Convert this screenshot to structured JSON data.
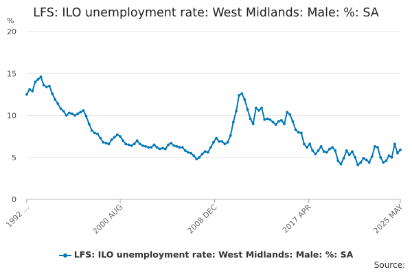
{
  "chart_data": {
    "type": "line",
    "title": "LFS: ILO unemployment rate: West Midlands: Male: %: SA",
    "ylabel": "%",
    "xlabel": "",
    "ylim": [
      0,
      20
    ],
    "yticks": [
      0,
      5,
      10,
      15,
      20
    ],
    "xlim": [
      "1992-05",
      "2025-05"
    ],
    "xtick_labels": [
      {
        "date": "1992-05",
        "label": "1992 ..."
      },
      {
        "date": "2000-08",
        "label": "2000 AUG"
      },
      {
        "date": "2008-12",
        "label": "2008 DEC"
      },
      {
        "date": "2017-04",
        "label": "2017 APR"
      },
      {
        "date": "2025-05",
        "label": "2025 MAY"
      }
    ],
    "grid": true,
    "legend_position": "bottom",
    "series": [
      {
        "name": "LFS: ILO unemployment rate: West Midlands: Male: %: SA",
        "color": "#0077b6",
        "points": [
          [
            "1992-05",
            12.5
          ],
          [
            "1992-08",
            13.1
          ],
          [
            "1992-11",
            12.9
          ],
          [
            "1993-02",
            14.0
          ],
          [
            "1993-05",
            14.3
          ],
          [
            "1993-08",
            14.6
          ],
          [
            "1993-11",
            13.6
          ],
          [
            "1994-02",
            13.4
          ],
          [
            "1994-05",
            13.5
          ],
          [
            "1994-08",
            12.6
          ],
          [
            "1994-11",
            11.9
          ],
          [
            "1995-02",
            11.4
          ],
          [
            "1995-05",
            10.8
          ],
          [
            "1995-08",
            10.5
          ],
          [
            "1995-11",
            10.0
          ],
          [
            "1996-02",
            10.3
          ],
          [
            "1996-05",
            10.2
          ],
          [
            "1996-08",
            10.0
          ],
          [
            "1996-11",
            10.2
          ],
          [
            "1997-02",
            10.4
          ],
          [
            "1997-05",
            10.6
          ],
          [
            "1997-08",
            9.9
          ],
          [
            "1997-11",
            9.0
          ],
          [
            "1998-02",
            8.2
          ],
          [
            "1998-05",
            7.9
          ],
          [
            "1998-08",
            7.8
          ],
          [
            "1998-11",
            7.3
          ],
          [
            "1999-02",
            6.8
          ],
          [
            "1999-05",
            6.7
          ],
          [
            "1999-08",
            6.6
          ],
          [
            "1999-11",
            7.1
          ],
          [
            "2000-02",
            7.4
          ],
          [
            "2000-05",
            7.7
          ],
          [
            "2000-08",
            7.5
          ],
          [
            "2000-11",
            7.0
          ],
          [
            "2001-02",
            6.6
          ],
          [
            "2001-05",
            6.5
          ],
          [
            "2001-08",
            6.4
          ],
          [
            "2001-11",
            6.6
          ],
          [
            "2002-02",
            7.0
          ],
          [
            "2002-05",
            6.6
          ],
          [
            "2002-08",
            6.4
          ],
          [
            "2002-11",
            6.3
          ],
          [
            "2003-02",
            6.2
          ],
          [
            "2003-05",
            6.2
          ],
          [
            "2003-08",
            6.5
          ],
          [
            "2003-11",
            6.2
          ],
          [
            "2004-02",
            6.0
          ],
          [
            "2004-05",
            6.1
          ],
          [
            "2004-08",
            6.0
          ],
          [
            "2004-11",
            6.5
          ],
          [
            "2005-02",
            6.7
          ],
          [
            "2005-05",
            6.4
          ],
          [
            "2005-08",
            6.3
          ],
          [
            "2005-11",
            6.2
          ],
          [
            "2006-02",
            6.2
          ],
          [
            "2006-05",
            5.8
          ],
          [
            "2006-08",
            5.6
          ],
          [
            "2006-11",
            5.5
          ],
          [
            "2007-02",
            5.2
          ],
          [
            "2007-05",
            4.8
          ],
          [
            "2007-08",
            5.0
          ],
          [
            "2007-11",
            5.4
          ],
          [
            "2008-02",
            5.7
          ],
          [
            "2008-05",
            5.6
          ],
          [
            "2008-08",
            6.2
          ],
          [
            "2008-11",
            6.8
          ],
          [
            "2009-02",
            7.3
          ],
          [
            "2009-05",
            6.9
          ],
          [
            "2009-08",
            6.9
          ],
          [
            "2009-11",
            6.6
          ],
          [
            "2010-02",
            6.8
          ],
          [
            "2010-05",
            7.6
          ],
          [
            "2010-08",
            9.2
          ],
          [
            "2010-11",
            10.5
          ],
          [
            "2011-02",
            12.4
          ],
          [
            "2011-05",
            12.6
          ],
          [
            "2011-08",
            11.9
          ],
          [
            "2011-11",
            10.7
          ],
          [
            "2012-02",
            9.6
          ],
          [
            "2012-05",
            9.0
          ],
          [
            "2012-08",
            10.9
          ],
          [
            "2012-11",
            10.6
          ],
          [
            "2013-02",
            10.9
          ],
          [
            "2013-05",
            9.5
          ],
          [
            "2013-08",
            9.6
          ],
          [
            "2013-11",
            9.5
          ],
          [
            "2014-02",
            9.2
          ],
          [
            "2014-05",
            8.9
          ],
          [
            "2014-08",
            9.3
          ],
          [
            "2014-11",
            9.4
          ],
          [
            "2015-02",
            9.0
          ],
          [
            "2015-05",
            10.4
          ],
          [
            "2015-08",
            10.1
          ],
          [
            "2015-11",
            9.3
          ],
          [
            "2016-02",
            8.3
          ],
          [
            "2016-05",
            8.0
          ],
          [
            "2016-08",
            7.9
          ],
          [
            "2016-11",
            6.6
          ],
          [
            "2017-02",
            6.2
          ],
          [
            "2017-05",
            6.6
          ],
          [
            "2017-08",
            5.8
          ],
          [
            "2017-11",
            5.4
          ],
          [
            "2018-02",
            5.8
          ],
          [
            "2018-05",
            6.3
          ],
          [
            "2018-08",
            5.7
          ],
          [
            "2018-11",
            5.6
          ],
          [
            "2019-02",
            6.0
          ],
          [
            "2019-05",
            6.2
          ],
          [
            "2019-08",
            5.8
          ],
          [
            "2019-11",
            4.6
          ],
          [
            "2020-02",
            4.2
          ],
          [
            "2020-05",
            4.9
          ],
          [
            "2020-08",
            5.8
          ],
          [
            "2020-11",
            5.3
          ],
          [
            "2021-02",
            5.7
          ],
          [
            "2021-05",
            5.0
          ],
          [
            "2021-08",
            4.1
          ],
          [
            "2021-11",
            4.4
          ],
          [
            "2022-02",
            4.9
          ],
          [
            "2022-05",
            4.7
          ],
          [
            "2022-08",
            4.4
          ],
          [
            "2022-11",
            5.1
          ],
          [
            "2023-02",
            6.3
          ],
          [
            "2023-05",
            6.2
          ],
          [
            "2023-08",
            5.0
          ],
          [
            "2023-11",
            4.4
          ],
          [
            "2024-02",
            4.6
          ],
          [
            "2024-05",
            5.2
          ],
          [
            "2024-08",
            5.0
          ],
          [
            "2024-11",
            6.6
          ],
          [
            "2025-02",
            5.5
          ],
          [
            "2025-05",
            5.9
          ]
        ]
      }
    ]
  },
  "footer": {
    "source_label": "Source:"
  }
}
